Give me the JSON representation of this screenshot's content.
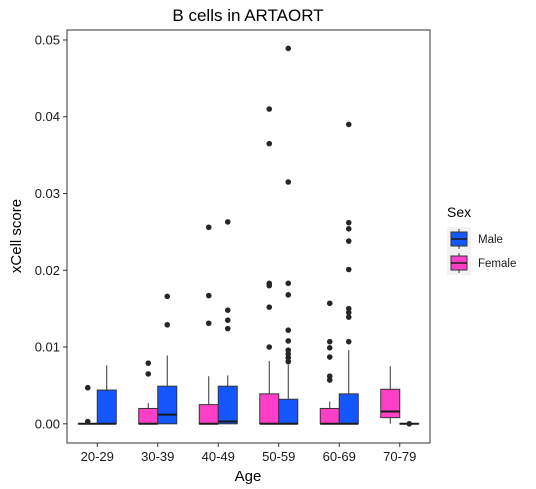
{
  "chart_data": {
    "type": "boxplot",
    "title": "B cells in ARTAORT",
    "xlabel": "Age",
    "ylabel": "xCell score",
    "ylim": [
      -0.0025,
      0.0513
    ],
    "yticks": [
      0.0,
      0.01,
      0.02,
      0.03,
      0.04,
      0.05
    ],
    "ytick_labels": [
      "0.00",
      "0.01",
      "0.02",
      "0.03",
      "0.04",
      "0.05"
    ],
    "categories": [
      "20-29",
      "30-39",
      "40-49",
      "50-59",
      "60-69",
      "70-79"
    ],
    "grid": false,
    "legend": {
      "title": "Sex",
      "position": "right"
    },
    "series": [
      {
        "name": "Female",
        "color": "#FF3FC8",
        "boxes": [
          {
            "category": "20-29",
            "min": 0.0,
            "q1": 0.0,
            "median": 0.0,
            "q3": 0.0,
            "max": 0.0,
            "outliers": [
              0.0047,
              0.0003
            ]
          },
          {
            "category": "30-39",
            "min": 0.0,
            "q1": 0.0,
            "median": 0.0,
            "q3": 0.002,
            "max": 0.0027,
            "outliers": [
              0.0079,
              0.0065
            ]
          },
          {
            "category": "40-49",
            "min": 0.0,
            "q1": 0.0,
            "median": 0.0,
            "q3": 0.0025,
            "max": 0.0062,
            "outliers": [
              0.0256,
              0.0167,
              0.0131
            ]
          },
          {
            "category": "50-59",
            "min": 0.0,
            "q1": 0.0,
            "median": 0.0,
            "q3": 0.0039,
            "max": 0.0082,
            "outliers": [
              0.041,
              0.0365,
              0.0183,
              0.018,
              0.0152,
              0.01
            ]
          },
          {
            "category": "60-69",
            "min": 0.0,
            "q1": 0.0,
            "median": 0.0,
            "q3": 0.002,
            "max": 0.0029,
            "outliers": [
              0.0157,
              0.0107,
              0.0099,
              0.0087,
              0.0062,
              0.0057
            ]
          },
          {
            "category": "70-79",
            "min": 0.0,
            "q1": 0.0008,
            "median": 0.0016,
            "q3": 0.0045,
            "max": 0.0075,
            "outliers": []
          }
        ]
      },
      {
        "name": "Male",
        "color": "#1457FF",
        "boxes": [
          {
            "category": "20-29",
            "min": 0.0,
            "q1": 0.0,
            "median": 0.0,
            "q3": 0.0044,
            "max": 0.0076,
            "outliers": []
          },
          {
            "category": "30-39",
            "min": 0.0,
            "q1": 0.0,
            "median": 0.0012,
            "q3": 0.0049,
            "max": 0.0089,
            "outliers": [
              0.0166,
              0.0129
            ]
          },
          {
            "category": "40-49",
            "min": 0.0,
            "q1": 0.0,
            "median": 0.0003,
            "q3": 0.0049,
            "max": 0.0063,
            "outliers": [
              0.0263,
              0.0148,
              0.0135,
              0.0124
            ]
          },
          {
            "category": "50-59",
            "min": 0.0,
            "q1": 0.0,
            "median": 0.0,
            "q3": 0.0032,
            "max": 0.0077,
            "outliers": [
              0.0489,
              0.0315,
              0.0183,
              0.0168,
              0.0122,
              0.0108,
              0.0096,
              0.0091,
              0.0086,
              0.0081
            ]
          },
          {
            "category": "60-69",
            "min": 0.0,
            "q1": 0.0,
            "median": 0.0,
            "q3": 0.0039,
            "max": 0.0096,
            "outliers": [
              0.039,
              0.0262,
              0.0254,
              0.0238,
              0.0201,
              0.015,
              0.0145,
              0.0139,
              0.0107
            ]
          },
          {
            "category": "70-79",
            "min": 0.0,
            "q1": 0.0,
            "median": 0.0,
            "q3": 0.0,
            "max": 0.0,
            "outliers": [
              0.0
            ]
          }
        ]
      }
    ],
    "legend_order": [
      "Male",
      "Female"
    ]
  }
}
